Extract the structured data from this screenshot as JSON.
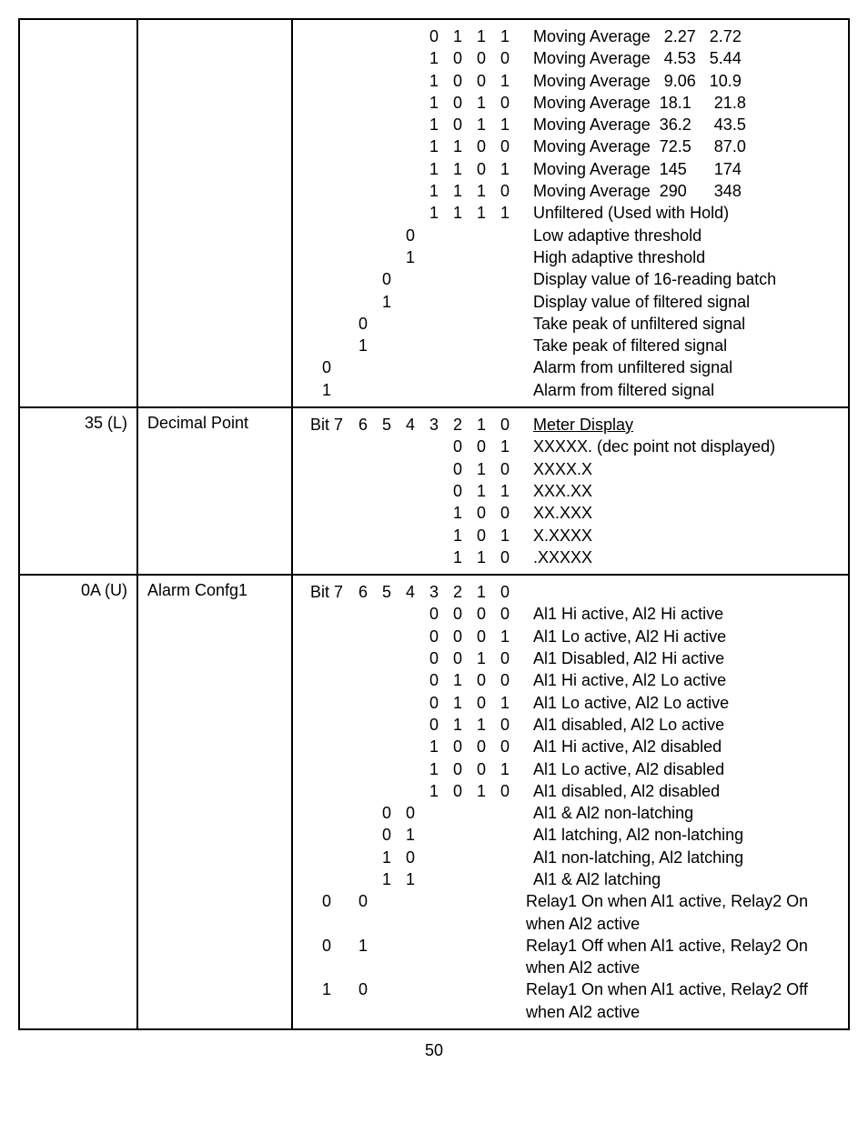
{
  "section1": {
    "rows": [
      {
        "b": [
          "",
          "",
          "",
          "",
          "0",
          "1",
          "1",
          "1"
        ],
        "d": "Moving Average   2.27   2.72"
      },
      {
        "b": [
          "",
          "",
          "",
          "",
          "1",
          "0",
          "0",
          "0"
        ],
        "d": "Moving Average   4.53   5.44"
      },
      {
        "b": [
          "",
          "",
          "",
          "",
          "1",
          "0",
          "0",
          "1"
        ],
        "d": "Moving Average   9.06   10.9"
      },
      {
        "b": [
          "",
          "",
          "",
          "",
          "1",
          "0",
          "1",
          "0"
        ],
        "d": "Moving Average  18.1     21.8"
      },
      {
        "b": [
          "",
          "",
          "",
          "",
          "1",
          "0",
          "1",
          "1"
        ],
        "d": "Moving Average  36.2     43.5"
      },
      {
        "b": [
          "",
          "",
          "",
          "",
          "1",
          "1",
          "0",
          "0"
        ],
        "d": "Moving Average  72.5     87.0"
      },
      {
        "b": [
          "",
          "",
          "",
          "",
          "1",
          "1",
          "0",
          "1"
        ],
        "d": "Moving Average  145      174"
      },
      {
        "b": [
          "",
          "",
          "",
          "",
          "1",
          "1",
          "1",
          "0"
        ],
        "d": "Moving Average  290      348"
      },
      {
        "b": [
          "",
          "",
          "",
          "",
          "1",
          "1",
          "1",
          "1"
        ],
        "d": "Unfiltered (Used with Hold)"
      },
      {
        "b": [
          "",
          "",
          "",
          "0",
          "",
          "",
          "",
          ""
        ],
        "d": "Low adaptive threshold"
      },
      {
        "b": [
          "",
          "",
          "",
          "1",
          "",
          "",
          "",
          ""
        ],
        "d": "High adaptive threshold"
      },
      {
        "b": [
          "",
          "",
          "0",
          "",
          "",
          "",
          "",
          ""
        ],
        "d": "Display value of 16-reading batch"
      },
      {
        "b": [
          "",
          "",
          "1",
          "",
          "",
          "",
          "",
          ""
        ],
        "d": "Display value of filtered signal"
      },
      {
        "b": [
          "",
          "0",
          "",
          "",
          "",
          "",
          "",
          ""
        ],
        "d": "Take peak of unfiltered signal"
      },
      {
        "b": [
          "",
          "1",
          "",
          "",
          "",
          "",
          "",
          ""
        ],
        "d": "Take peak of filtered signal"
      },
      {
        "b": [
          "0",
          "",
          "",
          "",
          "",
          "",
          "",
          ""
        ],
        "d": "Alarm from unfiltered signal"
      },
      {
        "b": [
          "1",
          "",
          "",
          "",
          "",
          "",
          "",
          ""
        ],
        "d": "Alarm from filtered signal"
      }
    ]
  },
  "section2": {
    "label": "35 (L)",
    "name": "Decimal Point",
    "header": [
      "Bit 7",
      "6",
      "5",
      "4",
      "3",
      "2",
      "1",
      "0"
    ],
    "headerDesc": "Meter Display",
    "rows": [
      {
        "b": [
          "",
          "",
          "",
          "",
          "",
          "0",
          "0",
          "1"
        ],
        "d": "XXXXX. (dec point not displayed)"
      },
      {
        "b": [
          "",
          "",
          "",
          "",
          "",
          "0",
          "1",
          "0"
        ],
        "d": "XXXX.X"
      },
      {
        "b": [
          "",
          "",
          "",
          "",
          "",
          "0",
          "1",
          "1"
        ],
        "d": "XXX.XX"
      },
      {
        "b": [
          "",
          "",
          "",
          "",
          "",
          "1",
          "0",
          "0"
        ],
        "d": "XX.XXX"
      },
      {
        "b": [
          "",
          "",
          "",
          "",
          "",
          "1",
          "0",
          "1"
        ],
        "d": "X.XXXX"
      },
      {
        "b": [
          "",
          "",
          "",
          "",
          "",
          "1",
          "1",
          "0"
        ],
        "d": ".XXXXX"
      }
    ]
  },
  "section3": {
    "label": "0A (U)",
    "name": "Alarm Confg1",
    "header": [
      "Bit 7",
      "6",
      "5",
      "4",
      "3",
      "2",
      "1",
      "0"
    ],
    "rows": [
      {
        "b": [
          "",
          "",
          "",
          "",
          "0",
          "0",
          "0",
          "0"
        ],
        "d": "Al1 Hi active, Al2 Hi active"
      },
      {
        "b": [
          "",
          "",
          "",
          "",
          "0",
          "0",
          "0",
          "1"
        ],
        "d": "Al1 Lo active, Al2 Hi active"
      },
      {
        "b": [
          "",
          "",
          "",
          "",
          "0",
          "0",
          "1",
          "0"
        ],
        "d": "Al1 Disabled, Al2 Hi active"
      },
      {
        "b": [
          "",
          "",
          "",
          "",
          "0",
          "1",
          "0",
          "0"
        ],
        "d": "Al1 Hi active, Al2 Lo active"
      },
      {
        "b": [
          "",
          "",
          "",
          "",
          "0",
          "1",
          "0",
          "1"
        ],
        "d": "Al1 Lo active, Al2 Lo active"
      },
      {
        "b": [
          "",
          "",
          "",
          "",
          "0",
          "1",
          "1",
          "0"
        ],
        "d": "Al1 disabled, Al2 Lo active"
      },
      {
        "b": [
          "",
          "",
          "",
          "",
          "1",
          "0",
          "0",
          "0"
        ],
        "d": "Al1 Hi active, Al2 disabled"
      },
      {
        "b": [
          "",
          "",
          "",
          "",
          "1",
          "0",
          "0",
          "1"
        ],
        "d": "Al1 Lo active, Al2 disabled"
      },
      {
        "b": [
          "",
          "",
          "",
          "",
          "1",
          "0",
          "1",
          "0"
        ],
        "d": "Al1 disabled, Al2 disabled"
      },
      {
        "b": [
          "",
          "",
          "0",
          "0",
          "",
          "",
          "",
          ""
        ],
        "d": "Al1 & Al2 non-latching"
      },
      {
        "b": [
          "",
          "",
          "0",
          "1",
          "",
          "",
          "",
          ""
        ],
        "d": "Al1 latching, Al2 non-latching"
      },
      {
        "b": [
          "",
          "",
          "1",
          "0",
          "",
          "",
          "",
          ""
        ],
        "d": "Al1 non-latching, Al2 latching"
      },
      {
        "b": [
          "",
          "",
          "1",
          "1",
          "",
          "",
          "",
          ""
        ],
        "d": "Al1 & Al2 latching"
      },
      {
        "b": [
          "0",
          "0",
          "",
          "",
          "",
          "",
          "",
          ""
        ],
        "d": "Relay1 On when Al1 active, Relay2 On when Al2 active"
      },
      {
        "b": [
          "0",
          "1",
          "",
          "",
          "",
          "",
          "",
          ""
        ],
        "d": "Relay1 Off when Al1 active, Relay2 On when Al2 active"
      },
      {
        "b": [
          "1",
          "0",
          "",
          "",
          "",
          "",
          "",
          ""
        ],
        "d": "Relay1 On when Al1 active, Relay2 Off when Al2 active"
      }
    ]
  },
  "pageNumber": "50"
}
